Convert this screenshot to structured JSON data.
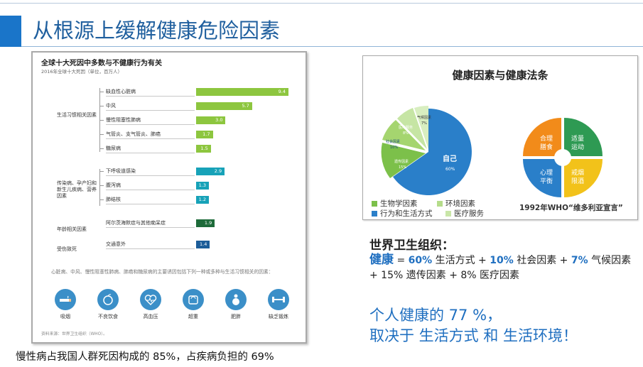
{
  "slide": {
    "title": "从根源上缓解健康危险因素",
    "bottom_text": "慢性病占我国人群死因构成的 85%，占疾病负担的 69%"
  },
  "left_chart": {
    "title": "全球十大死因中多数与不健康行为有关",
    "subtitle": "2016年全球十大死因（单位，百万人）",
    "note": "心脏病、中风、慢性阻塞性肺病、肺癌和糖尿病的主要诱因包括下列一种或多种与生活习惯相关的因素：",
    "source": "资料来源：世界卫生组织（WHO）。",
    "groups": [
      {
        "label": "生活习惯相关因素"
      },
      {
        "label": "传染病、孕产妇和新生儿疾病、营养因素"
      },
      {
        "label": "年龄相关因素"
      },
      {
        "label": "受伤致死"
      }
    ],
    "rows": [
      {
        "label": "缺血性心脏病",
        "value_text": "9.4"
      },
      {
        "label": "中风",
        "value_text": "5.7"
      },
      {
        "label": "慢性阻塞性肺病",
        "value_text": "3.0"
      },
      {
        "label": "气管炎、支气管炎、肺癌",
        "value_text": "1.7"
      },
      {
        "label": "糖尿病",
        "value_text": "1.5"
      },
      {
        "label": "下呼吸道感染",
        "value_text": "2.9"
      },
      {
        "label": "腹泻病",
        "value_text": "1.3"
      },
      {
        "label": "肺结核",
        "value_text": "1.2"
      },
      {
        "label": "阿尔茨海默症与其他痴呆症",
        "value_text": "1.9"
      },
      {
        "label": "交通意外",
        "value_text": "1.4"
      }
    ],
    "risks": [
      {
        "label": "吸烟"
      },
      {
        "label": "不良饮食"
      },
      {
        "label": "高血压"
      },
      {
        "label": "超重"
      },
      {
        "label": "肥胖"
      },
      {
        "label": "缺乏锻炼"
      }
    ]
  },
  "chart_data": {
    "type": "bar",
    "title": "全球十大死因中多数与不健康行为有关",
    "subtitle": "2016年全球十大死因（单位，百万人）",
    "categories": [
      "缺血性心脏病",
      "中风",
      "慢性阻塞性肺病",
      "气管炎、支气管炎、肺癌",
      "糖尿病",
      "下呼吸道感染",
      "腹泻病",
      "肺结核",
      "阿尔茨海默症与其他痴呆症",
      "交通意外"
    ],
    "values": [
      9.4,
      5.7,
      3.0,
      1.7,
      1.5,
      2.9,
      1.3,
      1.2,
      1.9,
      1.4
    ],
    "colors": [
      "#8dc63f",
      "#8dc63f",
      "#8dc63f",
      "#8dc63f",
      "#8dc63f",
      "#17a2b8",
      "#17a2b8",
      "#17a2b8",
      "#1e6b3a",
      "#1c5d99"
    ],
    "xlim": [
      0,
      9.4
    ]
  },
  "right_figure": {
    "title": "健康因素与健康法条",
    "pie_labels": {
      "self": "自己",
      "self_pct": "60%",
      "bio": "遗传因素",
      "bio_pct": "15%",
      "social": "社会因素",
      "social_pct": "10%",
      "med": "医疗服务",
      "med_pct": "8%",
      "env": "气候因素",
      "env_pct": "7%"
    },
    "legend": [
      "生物学因素",
      "环境因素",
      "行为和生活方式",
      "医疗服务"
    ],
    "quadrants": [
      "合理膳食",
      "适量运动",
      "心理平衡",
      "戒烟限酒"
    ],
    "caption": "1992年WHO“维多利亚宣言”",
    "colors": {
      "bio": "#8dc63f",
      "env": "#b5dc8a",
      "behavior": "#2a7fc9",
      "med": "#c9e6a8"
    }
  },
  "who": {
    "heading": "世界卫生组织：",
    "health": "健康",
    "eq": " = ",
    "p1": "60%",
    "t1": " 生活方式 + ",
    "p2": "10%",
    "t2": " 社会因素  + ",
    "p3": "7%",
    "t3": " 气候因素",
    "line2": "+ 15% 遗传因素 + 8% 医疗因素"
  },
  "conclusion": {
    "line1": "个人健康的 77 %，",
    "line2": "取决于 生活方式 和 生活环境！"
  }
}
